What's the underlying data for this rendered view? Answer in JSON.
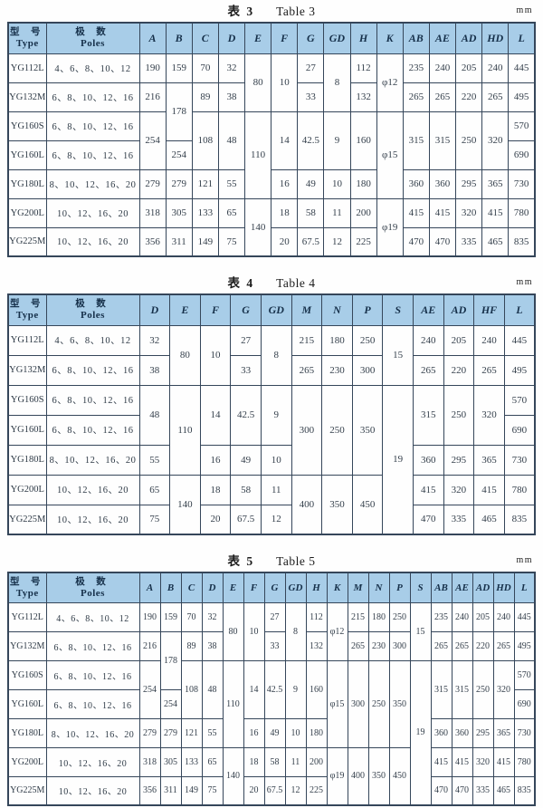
{
  "tables": [
    {
      "title_zh": "表 3",
      "title_en": "Table 3",
      "unit": "mm",
      "header": {
        "type_zh": "型 号",
        "type_en": "Type",
        "poles_zh": "极 数",
        "poles_en": "Poles"
      },
      "columns": [
        "A",
        "B",
        "C",
        "D",
        "E",
        "F",
        "G",
        "GD",
        "H",
        "K",
        "AB",
        "AE",
        "AD",
        "HD",
        "L"
      ],
      "rows": [
        {
          "type": "YG112L",
          "poles": "4、6、8、10、12",
          "cells": [
            [
              "190"
            ],
            [
              "159"
            ],
            [
              "70"
            ],
            [
              "32"
            ],
            [
              "80",
              2
            ],
            [
              "10",
              2
            ],
            [
              "27"
            ],
            [
              "8",
              2
            ],
            [
              "112"
            ],
            [
              "φ12",
              2
            ],
            [
              "235"
            ],
            [
              "240"
            ],
            [
              "205"
            ],
            [
              "240"
            ],
            [
              "445"
            ]
          ]
        },
        {
          "type": "YG132M",
          "poles": "6、8、10、12、16",
          "cells": [
            [
              "216"
            ],
            [
              "178",
              2
            ],
            [
              "89"
            ],
            [
              "38"
            ],
            [
              "33"
            ],
            [
              "132"
            ],
            [
              "265"
            ],
            [
              "265"
            ],
            [
              "220"
            ],
            [
              "265"
            ],
            [
              "495"
            ]
          ]
        },
        {
          "type": "YG160S",
          "poles": "6、8、10、12、16",
          "cells": [
            [
              "254",
              2
            ],
            [
              "108",
              2
            ],
            [
              "48",
              2
            ],
            [
              "110",
              3
            ],
            [
              "14",
              2
            ],
            [
              "42.5",
              2
            ],
            [
              "9",
              2
            ],
            [
              "160",
              2
            ],
            [
              "φ15",
              3
            ],
            [
              "315",
              2
            ],
            [
              "315",
              2
            ],
            [
              "250",
              2
            ],
            [
              "320",
              2
            ],
            [
              "570"
            ]
          ]
        },
        {
          "type": "YG160L",
          "poles": "6、8、10、12、16",
          "cells": [
            [
              "254"
            ],
            [
              "690"
            ]
          ]
        },
        {
          "type": "YG180L",
          "poles": "8、10、12、16、20",
          "cells": [
            [
              "279"
            ],
            [
              "279"
            ],
            [
              "121"
            ],
            [
              "55"
            ],
            [
              "16"
            ],
            [
              "49"
            ],
            [
              "10"
            ],
            [
              "180"
            ],
            [
              "360"
            ],
            [
              "360"
            ],
            [
              "295"
            ],
            [
              "365"
            ],
            [
              "730"
            ]
          ]
        },
        {
          "type": "YG200L",
          "poles": "10、12、16、20",
          "cells": [
            [
              "318"
            ],
            [
              "305"
            ],
            [
              "133"
            ],
            [
              "65"
            ],
            [
              "140",
              2
            ],
            [
              "18"
            ],
            [
              "58"
            ],
            [
              "11"
            ],
            [
              "200"
            ],
            [
              "φ19",
              2
            ],
            [
              "415"
            ],
            [
              "415"
            ],
            [
              "320"
            ],
            [
              "415"
            ],
            [
              "780"
            ]
          ]
        },
        {
          "type": "YG225M",
          "poles": "10、12、16、20",
          "cells": [
            [
              "356"
            ],
            [
              "311"
            ],
            [
              "149"
            ],
            [
              "75"
            ],
            [
              "20"
            ],
            [
              "67.5"
            ],
            [
              "12"
            ],
            [
              "225"
            ],
            [
              "470"
            ],
            [
              "470"
            ],
            [
              "335"
            ],
            [
              "465"
            ],
            [
              "835"
            ]
          ]
        }
      ]
    },
    {
      "title_zh": "表 4",
      "title_en": "Table 4",
      "unit": "mm",
      "header": {
        "type_zh": "型 号",
        "type_en": "Type",
        "poles_zh": "极 数",
        "poles_en": "Poles"
      },
      "columns": [
        "D",
        "E",
        "F",
        "G",
        "GD",
        "M",
        "N",
        "P",
        "S",
        "AE",
        "AD",
        "HF",
        "L"
      ],
      "rows": [
        {
          "type": "YG112L",
          "poles": "4、6、8、10、12",
          "cells": [
            [
              "32"
            ],
            [
              "80",
              2
            ],
            [
              "10",
              2
            ],
            [
              "27"
            ],
            [
              "8",
              2
            ],
            [
              "215"
            ],
            [
              "180"
            ],
            [
              "250"
            ],
            [
              "15",
              2
            ],
            [
              "240"
            ],
            [
              "205"
            ],
            [
              "240"
            ],
            [
              "445"
            ]
          ]
        },
        {
          "type": "YG132M",
          "poles": "6、8、10、12、16",
          "cells": [
            [
              "38"
            ],
            [
              "33"
            ],
            [
              "265"
            ],
            [
              "230"
            ],
            [
              "300"
            ],
            [
              "265"
            ],
            [
              "220"
            ],
            [
              "265"
            ],
            [
              "495"
            ]
          ]
        },
        {
          "type": "YG160S",
          "poles": "6、8、10、12、16",
          "cells": [
            [
              "48",
              2
            ],
            [
              "110",
              3
            ],
            [
              "14",
              2
            ],
            [
              "42.5",
              2
            ],
            [
              "9",
              2
            ],
            [
              "300",
              3
            ],
            [
              "250",
              3
            ],
            [
              "350",
              3
            ],
            [
              "19",
              5
            ],
            [
              "315",
              2
            ],
            [
              "250",
              2
            ],
            [
              "320",
              2
            ],
            [
              "570"
            ]
          ]
        },
        {
          "type": "YG160L",
          "poles": "6、8、10、12、16",
          "cells": [
            [
              "690"
            ]
          ]
        },
        {
          "type": "YG180L",
          "poles": "8、10、12、16、20",
          "cells": [
            [
              "55"
            ],
            [
              "16"
            ],
            [
              "49"
            ],
            [
              "10"
            ],
            [
              "360"
            ],
            [
              "295"
            ],
            [
              "365"
            ],
            [
              "730"
            ]
          ]
        },
        {
          "type": "YG200L",
          "poles": "10、12、16、20",
          "cells": [
            [
              "65"
            ],
            [
              "140",
              2
            ],
            [
              "18"
            ],
            [
              "58"
            ],
            [
              "11"
            ],
            [
              "400",
              2
            ],
            [
              "350",
              2
            ],
            [
              "450",
              2
            ],
            [
              "415"
            ],
            [
              "320"
            ],
            [
              "415"
            ],
            [
              "780"
            ]
          ]
        },
        {
          "type": "YG225M",
          "poles": "10、12、16、20",
          "cells": [
            [
              "75"
            ],
            [
              "20"
            ],
            [
              "67.5"
            ],
            [
              "12"
            ],
            [
              "470"
            ],
            [
              "335"
            ],
            [
              "465"
            ],
            [
              "835"
            ]
          ]
        }
      ]
    },
    {
      "title_zh": "表 5",
      "title_en": "Table 5",
      "unit": "mm",
      "header": {
        "type_zh": "型 号",
        "type_en": "Type",
        "poles_zh": "极 数",
        "poles_en": "Poles"
      },
      "columns": [
        "A",
        "B",
        "C",
        "D",
        "E",
        "F",
        "G",
        "GD",
        "H",
        "K",
        "M",
        "N",
        "P",
        "S",
        "AB",
        "AE",
        "AD",
        "HD",
        "L"
      ],
      "rows": [
        {
          "type": "YG112L",
          "poles": "4、6、8、10、12",
          "cells": [
            [
              "190"
            ],
            [
              "159"
            ],
            [
              "70"
            ],
            [
              "32"
            ],
            [
              "80",
              2
            ],
            [
              "10",
              2
            ],
            [
              "27"
            ],
            [
              "8",
              2
            ],
            [
              "112"
            ],
            [
              "φ12",
              2
            ],
            [
              "215"
            ],
            [
              "180"
            ],
            [
              "250"
            ],
            [
              "15",
              2
            ],
            [
              "235"
            ],
            [
              "240"
            ],
            [
              "205"
            ],
            [
              "240"
            ],
            [
              "445"
            ]
          ]
        },
        {
          "type": "YG132M",
          "poles": "6、8、10、12、16",
          "cells": [
            [
              "216"
            ],
            [
              "178",
              2
            ],
            [
              "89"
            ],
            [
              "38"
            ],
            [
              "33"
            ],
            [
              "132"
            ],
            [
              "265"
            ],
            [
              "230"
            ],
            [
              "300"
            ],
            [
              "265"
            ],
            [
              "265"
            ],
            [
              "220"
            ],
            [
              "265"
            ],
            [
              "495"
            ]
          ]
        },
        {
          "type": "YG160S",
          "poles": "6、8、10、12、16",
          "cells": [
            [
              "254",
              2
            ],
            [
              "108",
              2
            ],
            [
              "48",
              2
            ],
            [
              "110",
              3
            ],
            [
              "14",
              2
            ],
            [
              "42.5",
              2
            ],
            [
              "9",
              2
            ],
            [
              "160",
              2
            ],
            [
              "φ15",
              3
            ],
            [
              "300",
              3
            ],
            [
              "250",
              3
            ],
            [
              "350",
              3
            ],
            [
              "19",
              5
            ],
            [
              "315",
              2
            ],
            [
              "315",
              2
            ],
            [
              "250",
              2
            ],
            [
              "320",
              2
            ],
            [
              "570"
            ]
          ]
        },
        {
          "type": "YG160L",
          "poles": "6、8、10、12、16",
          "cells": [
            [
              "254"
            ],
            [
              "690"
            ]
          ]
        },
        {
          "type": "YG180L",
          "poles": "8、10、12、16、20",
          "cells": [
            [
              "279"
            ],
            [
              "279"
            ],
            [
              "121"
            ],
            [
              "55"
            ],
            [
              "16"
            ],
            [
              "49"
            ],
            [
              "10"
            ],
            [
              "180"
            ],
            [
              "360"
            ],
            [
              "360"
            ],
            [
              "295"
            ],
            [
              "365"
            ],
            [
              "730"
            ]
          ]
        },
        {
          "type": "YG200L",
          "poles": "10、12、16、20",
          "cells": [
            [
              "318"
            ],
            [
              "305"
            ],
            [
              "133"
            ],
            [
              "65"
            ],
            [
              "140",
              2
            ],
            [
              "18"
            ],
            [
              "58"
            ],
            [
              "11"
            ],
            [
              "200"
            ],
            [
              "φ19",
              2
            ],
            [
              "400",
              2
            ],
            [
              "350",
              2
            ],
            [
              "450",
              2
            ],
            [
              "415"
            ],
            [
              "415"
            ],
            [
              "320"
            ],
            [
              "415"
            ],
            [
              "780"
            ]
          ]
        },
        {
          "type": "YG225M",
          "poles": "10、12、16、20",
          "cells": [
            [
              "356"
            ],
            [
              "311"
            ],
            [
              "149"
            ],
            [
              "75"
            ],
            [
              "20"
            ],
            [
              "67.5"
            ],
            [
              "12"
            ],
            [
              "225"
            ],
            [
              "470"
            ],
            [
              "470"
            ],
            [
              "335"
            ],
            [
              "465"
            ],
            [
              "835"
            ]
          ]
        }
      ]
    }
  ]
}
